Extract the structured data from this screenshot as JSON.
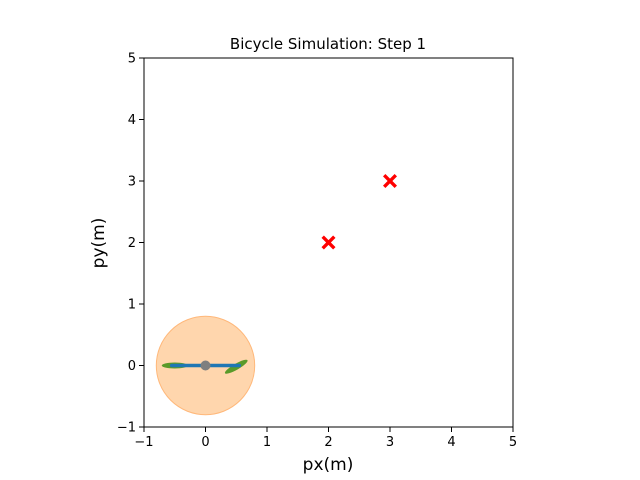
{
  "chart_data": {
    "type": "scatter",
    "title": "Bicycle Simulation: Step 1",
    "xlabel": "px(m)",
    "ylabel": "py(m)",
    "xlim": [
      -1,
      5
    ],
    "ylim": [
      -1,
      5
    ],
    "xticks": [
      "−1",
      "0",
      "1",
      "2",
      "3",
      "4",
      "5"
    ],
    "yticks": [
      "−1",
      "0",
      "1",
      "2",
      "3",
      "4",
      "5"
    ],
    "grid": false,
    "goals": [
      {
        "x": 2,
        "y": 2
      },
      {
        "x": 3,
        "y": 3
      }
    ],
    "bicycle": {
      "center": {
        "x": 0,
        "y": 0
      },
      "radius": 0.8,
      "frame": {
        "x1": -0.55,
        "y1": 0,
        "x2": 0.55,
        "y2": 0
      },
      "rear_wheel": {
        "x": -0.5,
        "y": 0
      },
      "front_wheel": {
        "x": 0.5,
        "y": -0.02
      },
      "front_wheel_angle_deg": 30
    },
    "colors": {
      "footprint": "#ffcc99",
      "footprint_edge": "#ffb87a",
      "frame": "#1f77b4",
      "wheel": "#5a9a2a",
      "hub": "#7f7f7f",
      "goal": "#ff0000"
    }
  }
}
